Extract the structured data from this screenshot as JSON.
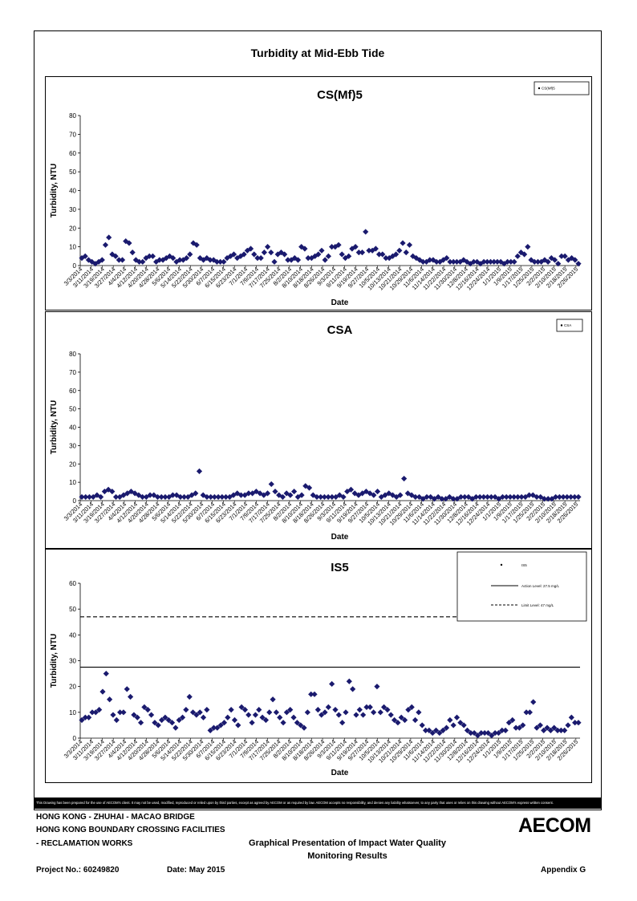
{
  "page_title": "Turbidity at Mid-Ebb Tide",
  "disclaimer": "This Drawing has been prepared for the use of AECOM's client. It may not be used, modified, reproduced or relied upon by third parties, except as agreed by AECOM or as required by law. AECOM accepts no responsibility, and denies any liability whatsoever, to any party that uses or relies on this drawing without AECOM's express written consent.",
  "footer": {
    "line1": "HONG KONG - ZHUHAI - MACAO BRIDGE",
    "line2": "HONG KONG BOUNDARY CROSSING FACILITIES",
    "line3": "- RECLAMATION WORKS",
    "center_title_1": "Graphical Presentation of Impact Water Quality",
    "center_title_2": "Monitoring Results",
    "project_no": "Project No.: 60249820",
    "date": "Date: May 2015",
    "appendix": "Appendix G",
    "logo": "AECOM"
  },
  "colors": {
    "marker": "#1a1a6e",
    "line": "#000000"
  },
  "chart_data": [
    {
      "type": "scatter",
      "title": "CS(Mf)5",
      "xlabel": "Date",
      "ylabel": "Turbidity, NTU",
      "ylim": [
        0,
        80
      ],
      "yticks": [
        0,
        10,
        20,
        30,
        40,
        50,
        60,
        70,
        80
      ],
      "xlim": [
        "3/3/2014",
        "3/1/2015"
      ],
      "tick_labels": [
        "3/3/2014",
        "3/11/2014",
        "3/19/2014",
        "3/27/2014",
        "4/4/2014",
        "4/12/2014",
        "4/20/2014",
        "4/28/2014",
        "5/6/2014",
        "5/14/2014",
        "5/22/2014",
        "5/30/2014",
        "6/7/2014",
        "6/15/2014",
        "6/23/2014",
        "7/1/2014",
        "7/9/2014",
        "7/17/2014",
        "7/25/2014",
        "8/2/2014",
        "8/10/2014",
        "8/18/2014",
        "8/26/2014",
        "9/3/2014",
        "9/11/2014",
        "9/19/2014",
        "9/27/2014",
        "10/5/2014",
        "10/13/2014",
        "10/21/2014",
        "10/29/2014",
        "11/6/2014",
        "11/14/2014",
        "11/22/2014",
        "11/30/2014",
        "12/8/2014",
        "12/16/2014",
        "12/24/2014",
        "1/1/2015",
        "1/9/2015",
        "1/17/2015",
        "1/25/2015",
        "2/2/2015",
        "2/10/2015",
        "2/18/2015",
        "2/26/2015"
      ],
      "legend": [
        "CS(Mf)5"
      ],
      "legend_position": "top-right",
      "series": [
        {
          "name": "CS(Mf)5",
          "values": [
            4,
            5,
            3,
            2,
            1,
            2,
            3,
            11,
            15,
            6,
            5,
            3,
            3,
            13,
            12,
            7,
            3,
            2,
            2,
            4,
            5,
            5,
            2,
            3,
            3,
            4,
            5,
            4,
            2,
            3,
            3,
            4,
            6,
            12,
            11,
            4,
            3,
            4,
            3,
            3,
            2,
            2,
            2,
            4,
            5,
            6,
            4,
            5,
            6,
            8,
            9,
            6,
            4,
            4,
            7,
            10,
            7,
            2,
            6,
            7,
            6,
            3,
            3,
            4,
            3,
            10,
            9,
            4,
            4,
            5,
            6,
            8,
            3,
            5,
            10,
            10,
            11,
            6,
            4,
            5,
            9,
            10,
            7,
            7,
            18,
            8,
            8,
            9,
            6,
            6,
            4,
            4,
            5,
            6,
            8,
            12,
            7,
            11,
            5,
            4,
            3,
            2,
            2,
            3,
            3,
            2,
            2,
            3,
            4,
            2,
            2,
            2,
            2,
            3,
            2,
            1,
            2,
            2,
            1,
            2,
            2,
            2,
            2,
            2,
            2,
            1,
            2,
            2,
            2,
            5,
            7,
            6,
            10,
            3,
            2,
            2,
            2,
            3,
            2,
            4,
            3,
            1,
            5,
            5,
            3,
            4,
            3,
            1
          ]
        }
      ]
    },
    {
      "type": "scatter",
      "title": "CSA",
      "xlabel": "Date",
      "ylabel": "Turbidity, NTU",
      "ylim": [
        0,
        80
      ],
      "yticks": [
        0,
        10,
        20,
        30,
        40,
        50,
        60,
        70,
        80
      ],
      "xlim": [
        "3/3/2014",
        "3/1/2015"
      ],
      "tick_labels": [
        "3/3/2014",
        "3/11/2014",
        "3/19/2014",
        "3/27/2014",
        "4/4/2014",
        "4/12/2014",
        "4/20/2014",
        "4/28/2014",
        "5/6/2014",
        "5/14/2014",
        "5/22/2014",
        "5/30/2014",
        "6/7/2014",
        "6/15/2014",
        "6/23/2014",
        "7/1/2014",
        "7/9/2014",
        "7/17/2014",
        "7/25/2014",
        "8/2/2014",
        "8/10/2014",
        "8/18/2014",
        "8/26/2014",
        "9/3/2014",
        "9/11/2014",
        "9/19/2014",
        "9/27/2014",
        "10/5/2014",
        "10/13/2014",
        "10/21/2014",
        "10/29/2014",
        "11/6/2014",
        "11/14/2014",
        "11/22/2014",
        "11/30/2014",
        "12/8/2014",
        "12/16/2014",
        "12/24/2014",
        "1/1/2015",
        "1/9/2015",
        "1/17/2015",
        "1/25/2015",
        "2/2/2015",
        "2/10/2015",
        "2/18/2015",
        "2/26/2015"
      ],
      "legend": [
        "CSA"
      ],
      "legend_position": "top-right",
      "series": [
        {
          "name": "CSA",
          "values": [
            2,
            2,
            2,
            2,
            3,
            2,
            5,
            6,
            5,
            2,
            2,
            3,
            4,
            5,
            4,
            3,
            2,
            2,
            3,
            3,
            2,
            2,
            2,
            2,
            3,
            3,
            2,
            2,
            2,
            3,
            4,
            16,
            3,
            2,
            2,
            2,
            2,
            2,
            2,
            2,
            3,
            4,
            3,
            3,
            4,
            4,
            5,
            4,
            3,
            4,
            9,
            5,
            3,
            2,
            4,
            3,
            5,
            2,
            3,
            8,
            7,
            3,
            2,
            2,
            2,
            2,
            2,
            2,
            3,
            2,
            5,
            6,
            4,
            3,
            4,
            5,
            4,
            3,
            5,
            2,
            3,
            4,
            3,
            2,
            3,
            12,
            4,
            3,
            2,
            2,
            1,
            2,
            2,
            1,
            2,
            1,
            1,
            2,
            1,
            1,
            2,
            2,
            2,
            1,
            2,
            2,
            2,
            2,
            2,
            2,
            1,
            2,
            2,
            2,
            2,
            2,
            2,
            2,
            3,
            3,
            2,
            2,
            1,
            1,
            1,
            2,
            2,
            2,
            2,
            2,
            2,
            2
          ]
        }
      ]
    },
    {
      "type": "scatter",
      "title": "IS5",
      "xlabel": "Date",
      "ylabel": "Turbidity, NTU",
      "ylim": [
        0,
        60
      ],
      "yticks": [
        0,
        10,
        20,
        30,
        40,
        50,
        60
      ],
      "xlim": [
        "3/3/2014",
        "3/1/2015"
      ],
      "tick_labels": [
        "3/3/2014",
        "3/11/2014",
        "3/19/2014",
        "3/27/2014",
        "4/4/2014",
        "4/12/2014",
        "4/20/2014",
        "4/28/2014",
        "5/6/2014",
        "5/14/2014",
        "5/22/2014",
        "5/30/2014",
        "6/7/2014",
        "6/15/2014",
        "6/23/2014",
        "7/1/2014",
        "7/9/2014",
        "7/17/2014",
        "7/25/2014",
        "8/2/2014",
        "8/10/2014",
        "8/18/2014",
        "8/26/2014",
        "9/3/2014",
        "9/11/2014",
        "9/19/2014",
        "9/27/2014",
        "10/5/2014",
        "10/13/2014",
        "10/21/2014",
        "10/29/2014",
        "11/6/2014",
        "11/14/2014",
        "11/22/2014",
        "11/30/2014",
        "12/8/2014",
        "12/16/2014",
        "12/24/2014",
        "1/1/2015",
        "1/9/2015",
        "1/17/2015",
        "1/25/2015",
        "2/2/2015",
        "2/10/2015",
        "2/18/2015",
        "2/26/2015"
      ],
      "legend": [
        "IS5",
        "Action Level: 27.5 mg/L",
        "Limit Level: 47 mg/L"
      ],
      "legend_position": "top-right",
      "reference_lines": [
        {
          "name": "Action Level: 27.5 mg/L",
          "value": 27.5,
          "style": "solid"
        },
        {
          "name": "Limit Level: 47 mg/L",
          "value": 47,
          "style": "dashed"
        }
      ],
      "series": [
        {
          "name": "IS5",
          "values": [
            7,
            8,
            8,
            10,
            10,
            11,
            18,
            25,
            15,
            9,
            7,
            10,
            10,
            19,
            16,
            9,
            8,
            6,
            12,
            11,
            9,
            6,
            5,
            7,
            8,
            7,
            6,
            4,
            7,
            8,
            11,
            16,
            10,
            9,
            10,
            8,
            11,
            3,
            4,
            4,
            5,
            6,
            8,
            11,
            7,
            5,
            12,
            11,
            9,
            6,
            9,
            11,
            8,
            7,
            10,
            15,
            10,
            8,
            6,
            10,
            11,
            8,
            6,
            5,
            4,
            10,
            17,
            17,
            11,
            9,
            10,
            12,
            21,
            11,
            9,
            6,
            10,
            22,
            19,
            9,
            11,
            9,
            12,
            12,
            10,
            20,
            10,
            12,
            11,
            9,
            7,
            6,
            8,
            7,
            11,
            12,
            7,
            10,
            5,
            3,
            3,
            2,
            3,
            2,
            3,
            4,
            7,
            5,
            8,
            6,
            5,
            3,
            2,
            2,
            1,
            2,
            2,
            2,
            1,
            2,
            2,
            3,
            3,
            6,
            7,
            4,
            4,
            5,
            10,
            10,
            14,
            4,
            5,
            3,
            4,
            3,
            4,
            3,
            3,
            3,
            5,
            8,
            6,
            6
          ]
        }
      ]
    }
  ]
}
